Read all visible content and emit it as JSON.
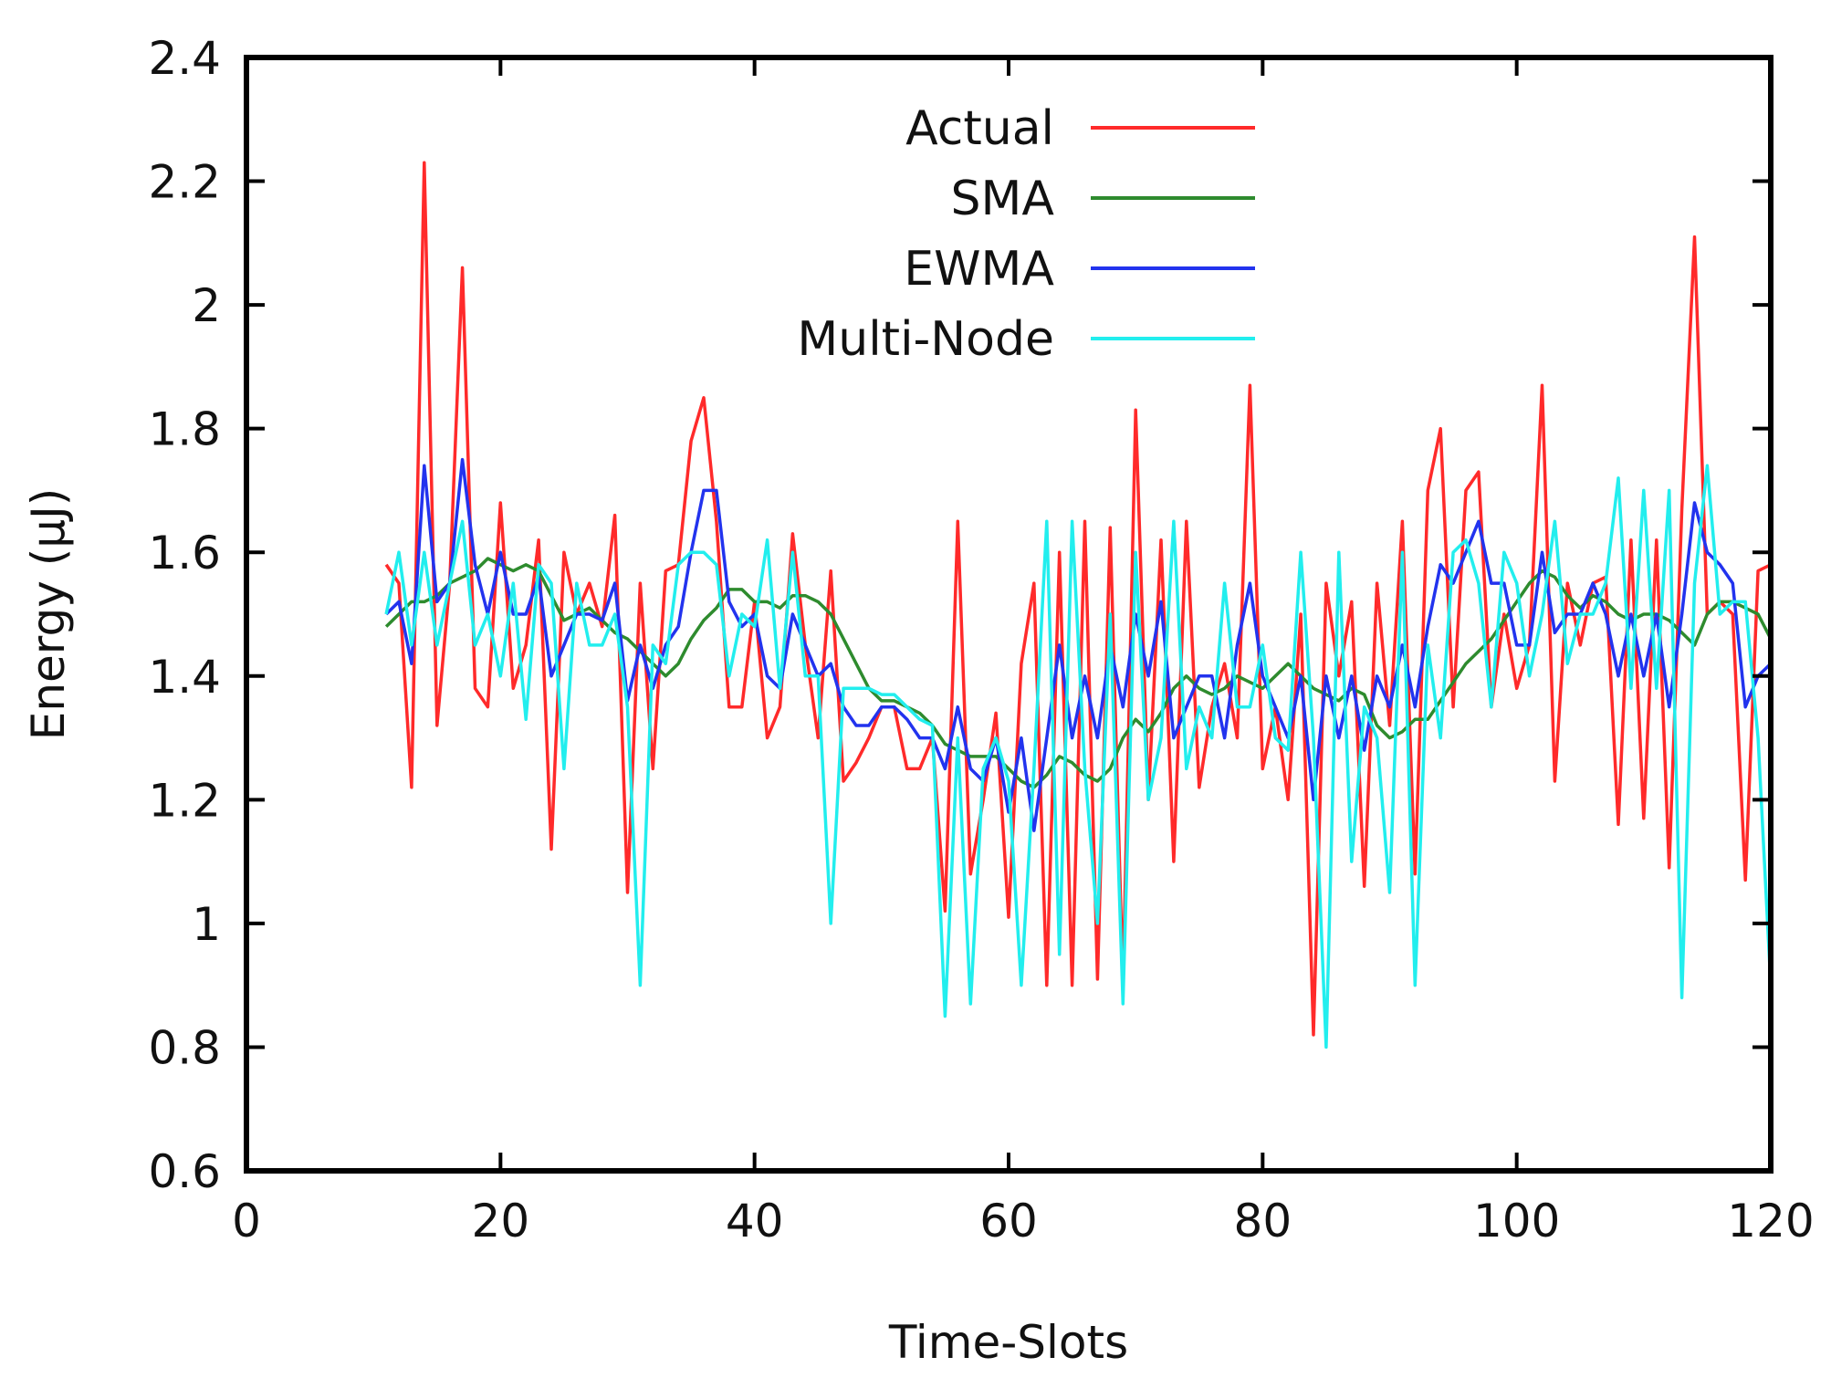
{
  "chart_data": {
    "type": "line",
    "title": "",
    "xlabel": "Time-Slots",
    "ylabel": "Energy (µJ)",
    "xlim": [
      0,
      120
    ],
    "ylim": [
      0.6,
      2.4
    ],
    "xticks": [
      0,
      20,
      40,
      60,
      80,
      100,
      120
    ],
    "xtick_labels": [
      "0",
      "20",
      "40",
      "60",
      "80",
      "100",
      "120"
    ],
    "yticks": [
      0.6,
      0.8,
      1.0,
      1.2,
      1.4,
      1.6,
      1.8,
      2.0,
      2.2,
      2.4
    ],
    "ytick_labels": [
      "0.6",
      "0.8",
      "1",
      "1.2",
      "1.4",
      "1.6",
      "1.8",
      "2",
      "2.2",
      "2.4"
    ],
    "grid": false,
    "legend_position": "top-center",
    "x": [
      11,
      12,
      13,
      14,
      15,
      16,
      17,
      18,
      19,
      20,
      21,
      22,
      23,
      24,
      25,
      26,
      27,
      28,
      29,
      30,
      31,
      32,
      33,
      34,
      35,
      36,
      37,
      38,
      39,
      40,
      41,
      42,
      43,
      44,
      45,
      46,
      47,
      48,
      49,
      50,
      51,
      52,
      53,
      54,
      55,
      56,
      57,
      58,
      59,
      60,
      61,
      62,
      63,
      64,
      65,
      66,
      67,
      68,
      69,
      70,
      71,
      72,
      73,
      74,
      75,
      76,
      77,
      78,
      79,
      80,
      81,
      82,
      83,
      84,
      85,
      86,
      87,
      88,
      89,
      90,
      91,
      92,
      93,
      94,
      95,
      96,
      97,
      98,
      99,
      100,
      101,
      102,
      103,
      104,
      105,
      106,
      107,
      108,
      109,
      110,
      111,
      112,
      113,
      114,
      115,
      116,
      117,
      118,
      119,
      120
    ],
    "series": [
      {
        "name": "Actual",
        "color": "#ff2a2a",
        "values": [
          1.58,
          1.55,
          1.22,
          2.23,
          1.32,
          1.55,
          2.06,
          1.38,
          1.35,
          1.68,
          1.38,
          1.45,
          1.62,
          1.12,
          1.6,
          1.5,
          1.55,
          1.48,
          1.66,
          1.05,
          1.55,
          1.25,
          1.57,
          1.58,
          1.78,
          1.85,
          1.65,
          1.35,
          1.35,
          1.52,
          1.3,
          1.35,
          1.63,
          1.45,
          1.3,
          1.57,
          1.23,
          1.26,
          1.3,
          1.35,
          1.35,
          1.25,
          1.25,
          1.3,
          1.02,
          1.65,
          1.08,
          1.2,
          1.34,
          1.01,
          1.42,
          1.55,
          0.9,
          1.6,
          0.9,
          1.65,
          0.91,
          1.64,
          0.9,
          1.83,
          1.2,
          1.62,
          1.1,
          1.65,
          1.22,
          1.35,
          1.42,
          1.3,
          1.87,
          1.25,
          1.35,
          1.2,
          1.5,
          0.82,
          1.55,
          1.4,
          1.52,
          1.06,
          1.55,
          1.32,
          1.65,
          1.08,
          1.7,
          1.8,
          1.35,
          1.7,
          1.73,
          1.35,
          1.5,
          1.38,
          1.45,
          1.87,
          1.23,
          1.55,
          1.45,
          1.55,
          1.56,
          1.16,
          1.62,
          1.17,
          1.62,
          1.09,
          1.67,
          2.11,
          1.5,
          1.52,
          1.5,
          1.07,
          1.57,
          1.58
        ]
      },
      {
        "name": "SMA",
        "color": "#2e8b2e",
        "values": [
          1.48,
          1.5,
          1.52,
          1.52,
          1.53,
          1.55,
          1.56,
          1.57,
          1.59,
          1.58,
          1.57,
          1.58,
          1.57,
          1.53,
          1.49,
          1.5,
          1.51,
          1.49,
          1.47,
          1.46,
          1.44,
          1.42,
          1.4,
          1.42,
          1.46,
          1.49,
          1.51,
          1.54,
          1.54,
          1.52,
          1.52,
          1.51,
          1.53,
          1.53,
          1.52,
          1.5,
          1.46,
          1.42,
          1.38,
          1.36,
          1.36,
          1.35,
          1.34,
          1.32,
          1.29,
          1.28,
          1.27,
          1.27,
          1.27,
          1.25,
          1.23,
          1.22,
          1.24,
          1.27,
          1.26,
          1.24,
          1.23,
          1.25,
          1.3,
          1.33,
          1.31,
          1.34,
          1.38,
          1.4,
          1.38,
          1.37,
          1.38,
          1.4,
          1.39,
          1.38,
          1.4,
          1.42,
          1.4,
          1.38,
          1.37,
          1.36,
          1.38,
          1.37,
          1.32,
          1.3,
          1.31,
          1.33,
          1.33,
          1.36,
          1.39,
          1.42,
          1.44,
          1.46,
          1.49,
          1.52,
          1.55,
          1.57,
          1.56,
          1.53,
          1.51,
          1.53,
          1.52,
          1.5,
          1.49,
          1.5,
          1.5,
          1.49,
          1.47,
          1.45,
          1.5,
          1.52,
          1.52,
          1.51,
          1.5,
          1.46
        ]
      },
      {
        "name": "EWMA",
        "color": "#2233ee",
        "values": [
          1.5,
          1.52,
          1.42,
          1.74,
          1.52,
          1.55,
          1.75,
          1.58,
          1.5,
          1.6,
          1.5,
          1.5,
          1.56,
          1.4,
          1.45,
          1.5,
          1.5,
          1.49,
          1.55,
          1.36,
          1.45,
          1.38,
          1.45,
          1.48,
          1.6,
          1.7,
          1.7,
          1.52,
          1.48,
          1.5,
          1.4,
          1.38,
          1.5,
          1.45,
          1.4,
          1.42,
          1.35,
          1.32,
          1.32,
          1.35,
          1.35,
          1.33,
          1.3,
          1.3,
          1.25,
          1.35,
          1.25,
          1.23,
          1.3,
          1.18,
          1.3,
          1.15,
          1.3,
          1.45,
          1.3,
          1.4,
          1.3,
          1.45,
          1.35,
          1.5,
          1.4,
          1.52,
          1.3,
          1.35,
          1.4,
          1.4,
          1.3,
          1.45,
          1.55,
          1.4,
          1.35,
          1.3,
          1.4,
          1.2,
          1.4,
          1.3,
          1.4,
          1.28,
          1.4,
          1.35,
          1.45,
          1.35,
          1.48,
          1.58,
          1.55,
          1.6,
          1.65,
          1.55,
          1.55,
          1.45,
          1.45,
          1.6,
          1.47,
          1.5,
          1.5,
          1.55,
          1.5,
          1.4,
          1.5,
          1.4,
          1.5,
          1.35,
          1.5,
          1.68,
          1.6,
          1.58,
          1.55,
          1.35,
          1.4,
          1.42
        ]
      },
      {
        "name": "Multi-Node",
        "color": "#22eeee",
        "values": [
          1.5,
          1.6,
          1.45,
          1.6,
          1.45,
          1.55,
          1.65,
          1.45,
          1.5,
          1.4,
          1.55,
          1.33,
          1.58,
          1.55,
          1.25,
          1.55,
          1.45,
          1.45,
          1.5,
          1.35,
          0.9,
          1.45,
          1.42,
          1.58,
          1.6,
          1.6,
          1.58,
          1.4,
          1.5,
          1.48,
          1.62,
          1.38,
          1.6,
          1.4,
          1.4,
          1.0,
          1.38,
          1.38,
          1.38,
          1.37,
          1.37,
          1.35,
          1.33,
          1.32,
          0.85,
          1.3,
          0.87,
          1.25,
          1.3,
          1.23,
          0.9,
          1.25,
          1.65,
          0.95,
          1.65,
          1.25,
          1.0,
          1.5,
          0.87,
          1.6,
          1.2,
          1.3,
          1.65,
          1.25,
          1.35,
          1.3,
          1.55,
          1.35,
          1.35,
          1.45,
          1.3,
          1.28,
          1.6,
          1.3,
          0.8,
          1.6,
          1.1,
          1.35,
          1.3,
          1.05,
          1.6,
          0.9,
          1.45,
          1.3,
          1.6,
          1.62,
          1.55,
          1.35,
          1.6,
          1.55,
          1.4,
          1.5,
          1.65,
          1.42,
          1.5,
          1.5,
          1.55,
          1.72,
          1.38,
          1.7,
          1.38,
          1.7,
          0.88,
          1.55,
          1.74,
          1.5,
          1.52,
          1.52,
          1.3,
          0.9
        ]
      }
    ]
  }
}
